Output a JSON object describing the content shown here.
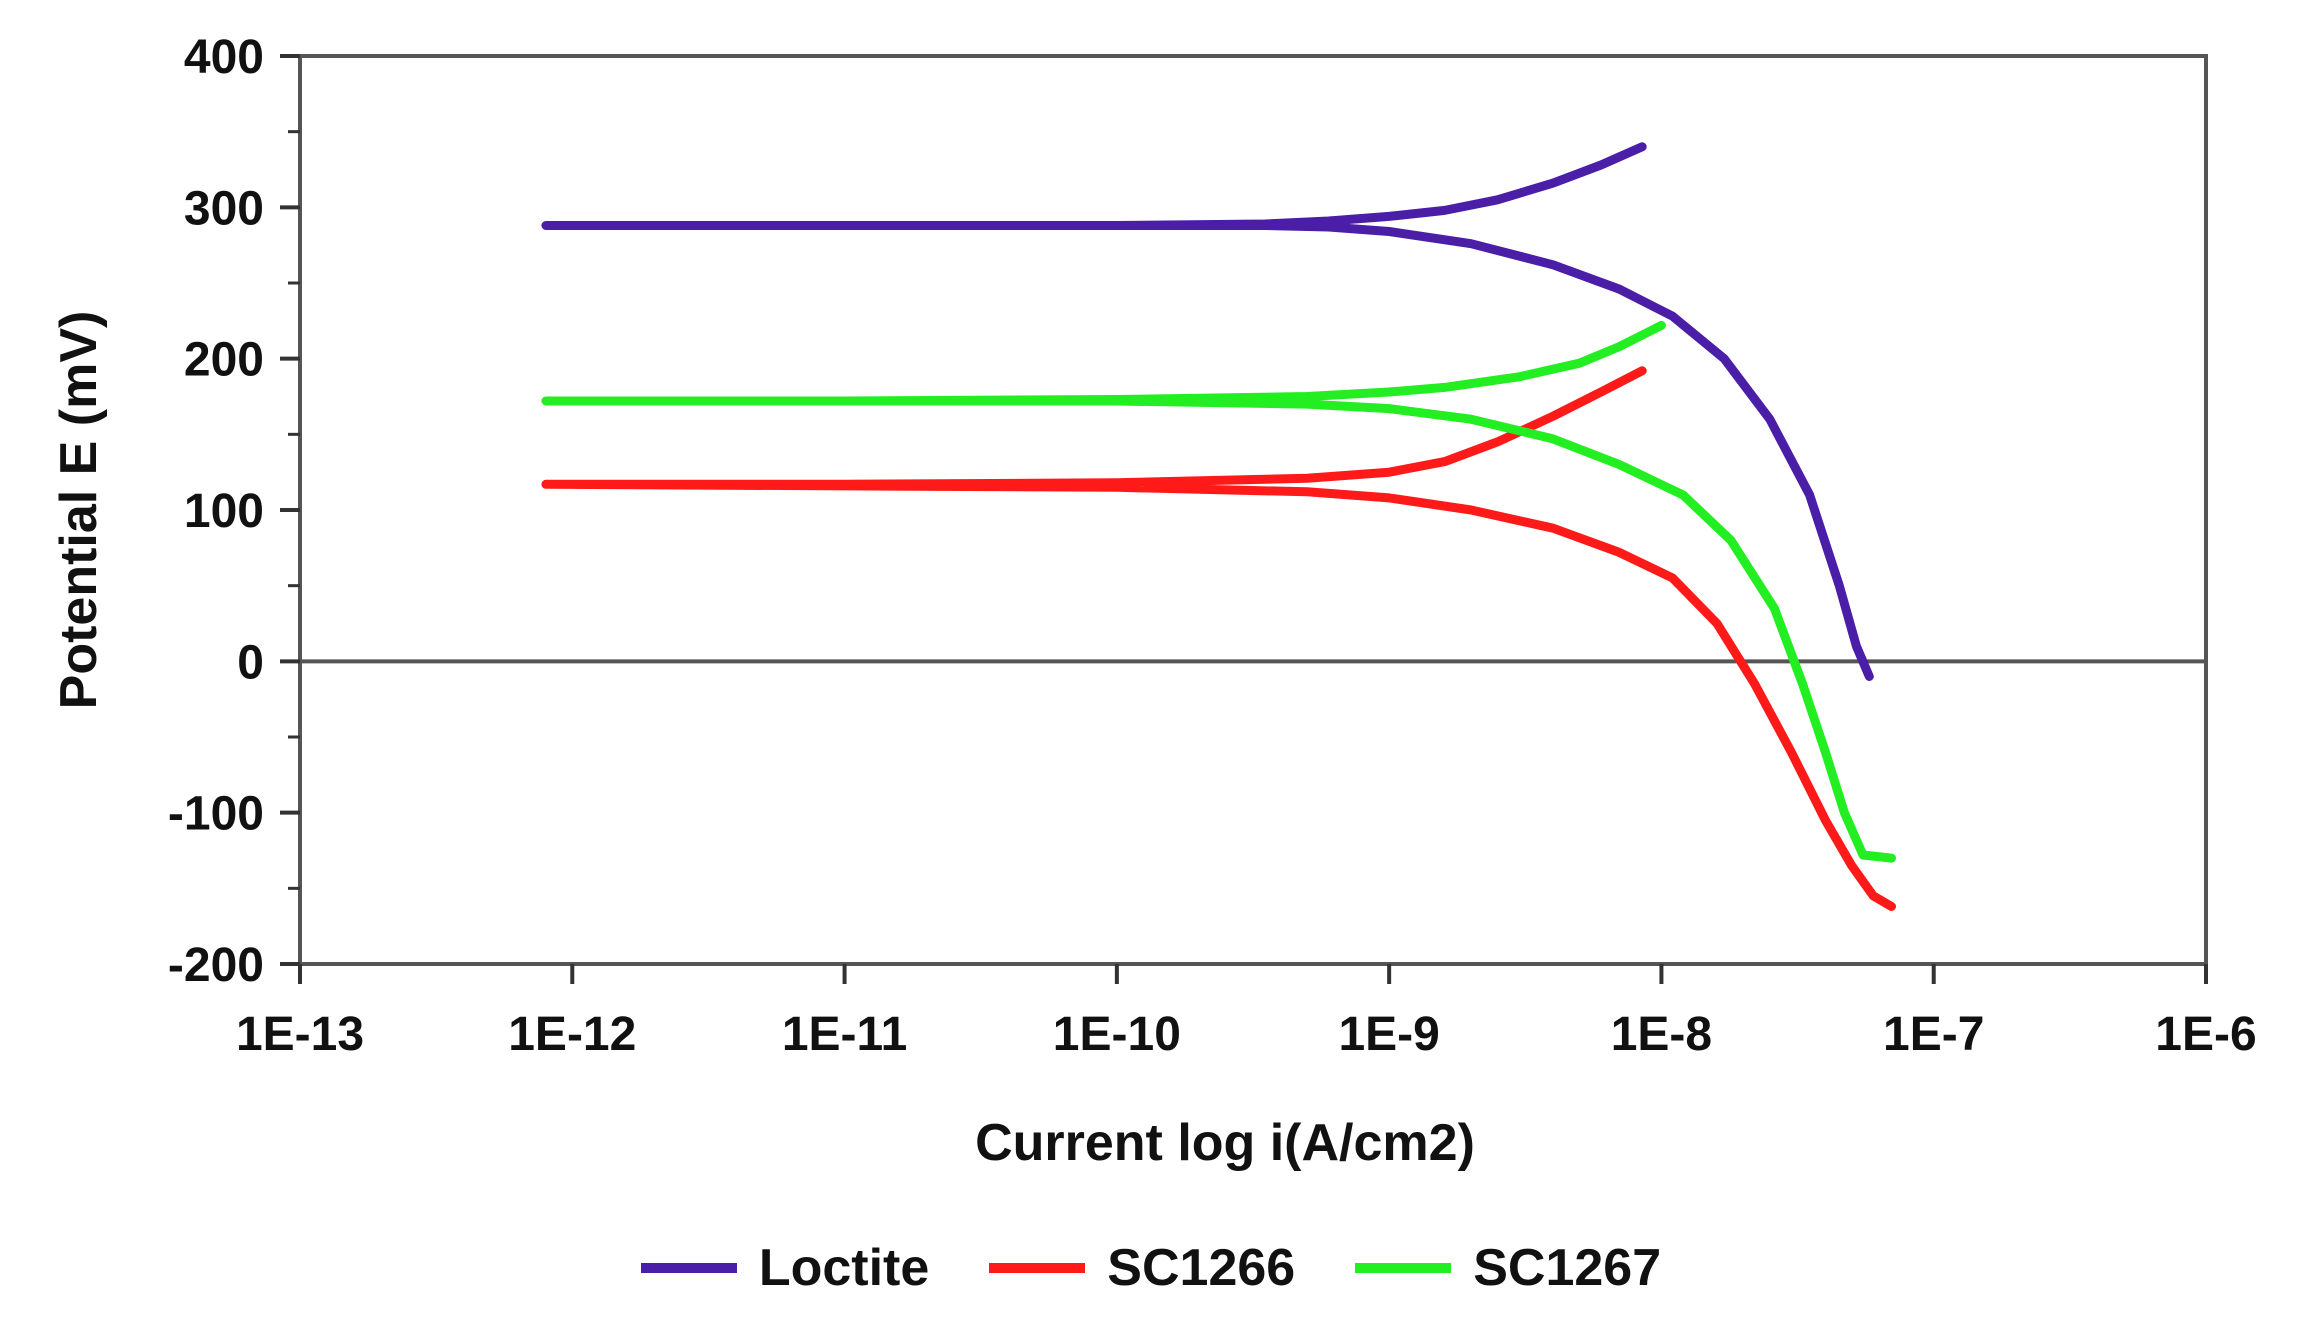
{
  "chart_data": {
    "type": "line",
    "xlabel": "Current log i(A/cm2)",
    "ylabel": "Potential E (mV)",
    "x_scale": "log",
    "xlim": [
      1e-13,
      1e-06
    ],
    "ylim": [
      -200,
      400
    ],
    "x_ticks": [
      1e-13,
      1e-12,
      1e-11,
      1e-10,
      1e-09,
      1e-08,
      1e-07,
      1e-06
    ],
    "x_tick_labels": [
      "1E-13",
      "1E-12",
      "1E-11",
      "1E-10",
      "1E-9",
      "1E-8",
      "1E-7",
      "1E-6"
    ],
    "y_ticks": [
      -200,
      -100,
      0,
      100,
      200,
      300,
      400
    ],
    "y_tick_labels": [
      "-200",
      "-100",
      "0",
      "100",
      "200",
      "300",
      "400"
    ],
    "grid": false,
    "zero_line": true,
    "legend_position": "bottom",
    "series": [
      {
        "name": "Loctite",
        "color": "#4B1EA8",
        "points": [
          [
            8.5e-09,
            340
          ],
          [
            6e-09,
            328
          ],
          [
            4e-09,
            316
          ],
          [
            2.5e-09,
            305
          ],
          [
            1.6e-09,
            298
          ],
          [
            1e-09,
            294
          ],
          [
            6e-10,
            291
          ],
          [
            3.5e-10,
            289
          ],
          [
            1e-10,
            288
          ],
          [
            1e-11,
            288
          ],
          [
            8e-13,
            288
          ],
          [
            3.5e-10,
            288
          ],
          [
            6e-10,
            287
          ],
          [
            1e-09,
            284
          ],
          [
            2e-09,
            276
          ],
          [
            4e-09,
            262
          ],
          [
            7e-09,
            246
          ],
          [
            1.1e-08,
            228
          ],
          [
            1.7e-08,
            200
          ],
          [
            2.5e-08,
            160
          ],
          [
            3.5e-08,
            110
          ],
          [
            4.5e-08,
            50
          ],
          [
            5.2e-08,
            10
          ],
          [
            5.8e-08,
            -10
          ]
        ]
      },
      {
        "name": "SC1266",
        "color": "#FF1A1A",
        "points": [
          [
            8.5e-09,
            192
          ],
          [
            6e-09,
            178
          ],
          [
            4e-09,
            162
          ],
          [
            2.5e-09,
            145
          ],
          [
            1.6e-09,
            132
          ],
          [
            1e-09,
            125
          ],
          [
            5e-10,
            121
          ],
          [
            1e-10,
            118
          ],
          [
            1e-11,
            117
          ],
          [
            8e-13,
            117
          ],
          [
            1e-10,
            115
          ],
          [
            5e-10,
            112
          ],
          [
            1e-09,
            108
          ],
          [
            2e-09,
            100
          ],
          [
            4e-09,
            88
          ],
          [
            7e-09,
            72
          ],
          [
            1.1e-08,
            55
          ],
          [
            1.6e-08,
            25
          ],
          [
            2.2e-08,
            -15
          ],
          [
            3e-08,
            -60
          ],
          [
            4e-08,
            -105
          ],
          [
            5e-08,
            -135
          ],
          [
            6e-08,
            -155
          ],
          [
            7e-08,
            -162
          ]
        ]
      },
      {
        "name": "SC1267",
        "color": "#22EE22",
        "points": [
          [
            1e-08,
            222
          ],
          [
            7e-09,
            208
          ],
          [
            5e-09,
            197
          ],
          [
            3e-09,
            188
          ],
          [
            1.6e-09,
            181
          ],
          [
            1e-09,
            178
          ],
          [
            5e-10,
            175
          ],
          [
            1e-10,
            173
          ],
          [
            1e-11,
            172
          ],
          [
            8e-13,
            172
          ],
          [
            1e-10,
            172
          ],
          [
            5e-10,
            170
          ],
          [
            1e-09,
            167
          ],
          [
            2e-09,
            160
          ],
          [
            4e-09,
            147
          ],
          [
            7e-09,
            130
          ],
          [
            1.2e-08,
            110
          ],
          [
            1.8e-08,
            80
          ],
          [
            2.6e-08,
            35
          ],
          [
            3.3e-08,
            -15
          ],
          [
            4e-08,
            -60
          ],
          [
            4.7e-08,
            -100
          ],
          [
            5.5e-08,
            -128
          ],
          [
            7e-08,
            -130
          ]
        ]
      }
    ]
  }
}
